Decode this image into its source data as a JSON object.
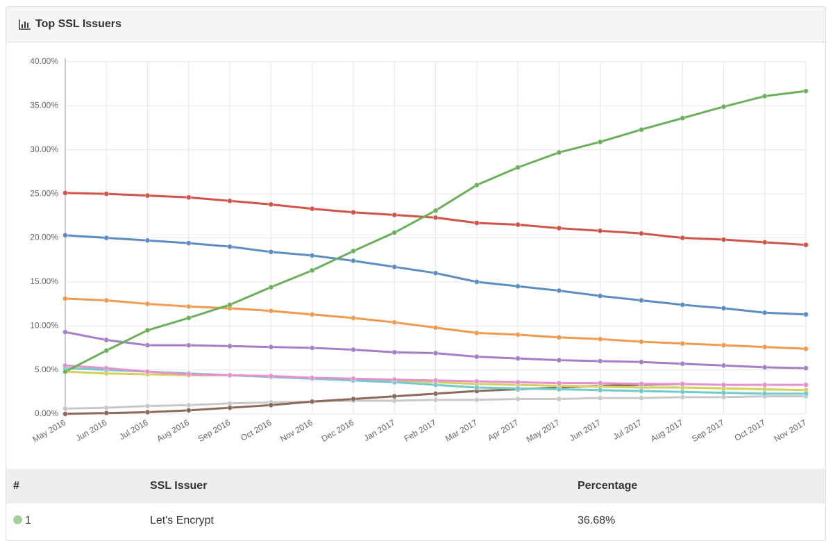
{
  "panel": {
    "title": "Top SSL Issuers"
  },
  "chart_data": {
    "type": "line",
    "categories": [
      "May 2016",
      "Jun 2016",
      "Jul 2016",
      "Aug 2016",
      "Sep 2016",
      "Oct 2016",
      "Nov 2016",
      "Dec 2016",
      "Jan 2017",
      "Feb 2017",
      "Mar 2017",
      "Apr 2017",
      "May 2017",
      "Jun 2017",
      "Jul 2017",
      "Aug 2017",
      "Sep 2017",
      "Oct 2017",
      "Nov 2017"
    ],
    "ylim": [
      0,
      40
    ],
    "yticks": [
      {
        "value": 0,
        "label": "0.00%"
      },
      {
        "value": 5,
        "label": "5.00%"
      },
      {
        "value": 10,
        "label": "10.00%"
      },
      {
        "value": 15,
        "label": "15.00%"
      },
      {
        "value": 20,
        "label": "20.00%"
      },
      {
        "value": 25,
        "label": "25.00%"
      },
      {
        "value": 30,
        "label": "30.00%"
      },
      {
        "value": 35,
        "label": "35.00%"
      },
      {
        "value": 40,
        "label": "40.00%"
      }
    ],
    "grid": true,
    "series": [
      {
        "color": "#c8c8c8",
        "values": [
          0.6,
          0.7,
          0.9,
          1.0,
          1.2,
          1.3,
          1.4,
          1.5,
          1.5,
          1.6,
          1.6,
          1.7,
          1.7,
          1.8,
          1.8,
          1.9,
          1.9,
          2.0,
          2.0
        ]
      },
      {
        "color": "#8c6a5a",
        "values": [
          0.0,
          0.1,
          0.2,
          0.4,
          0.7,
          1.0,
          1.4,
          1.7,
          2.0,
          2.3,
          2.6,
          2.8,
          3.0,
          3.2,
          3.3,
          3.4,
          null,
          null,
          null
        ]
      },
      {
        "color": "#d3d05a",
        "values": [
          4.8,
          4.6,
          4.5,
          4.4,
          4.4,
          4.2,
          4.0,
          3.9,
          3.8,
          3.6,
          3.4,
          3.3,
          3.2,
          3.1,
          3.0,
          3.0,
          2.9,
          2.8,
          2.7
        ]
      },
      {
        "color": "#6fcbcb",
        "values": [
          5.2,
          5.0,
          4.8,
          4.6,
          4.4,
          4.2,
          4.0,
          3.8,
          3.6,
          3.3,
          3.0,
          2.9,
          2.8,
          2.7,
          2.6,
          2.5,
          2.4,
          2.3,
          2.3
        ]
      },
      {
        "color": "#e58fcf",
        "values": [
          5.5,
          5.2,
          4.8,
          4.5,
          4.4,
          4.3,
          4.1,
          4.0,
          3.9,
          3.8,
          3.7,
          3.6,
          3.5,
          3.5,
          3.4,
          3.4,
          3.3,
          3.3,
          3.3
        ]
      },
      {
        "color": "#a47ec6",
        "values": [
          9.3,
          8.4,
          7.8,
          7.8,
          7.7,
          7.6,
          7.5,
          7.3,
          7.0,
          6.9,
          6.5,
          6.3,
          6.1,
          6.0,
          5.9,
          5.7,
          5.5,
          5.3,
          5.2
        ]
      },
      {
        "color": "#f0994f",
        "values": [
          13.1,
          12.9,
          12.5,
          12.2,
          12.0,
          11.7,
          11.3,
          10.9,
          10.4,
          9.8,
          9.2,
          9.0,
          8.7,
          8.5,
          8.2,
          8.0,
          7.8,
          7.6,
          7.4
        ]
      },
      {
        "color": "#5b8dc0",
        "values": [
          20.3,
          20.0,
          19.7,
          19.4,
          19.0,
          18.4,
          18.0,
          17.4,
          16.7,
          16.0,
          15.0,
          14.5,
          14.0,
          13.4,
          12.9,
          12.4,
          12.0,
          11.5,
          11.3
        ]
      },
      {
        "color": "#d0534a",
        "values": [
          25.1,
          25.0,
          24.8,
          24.6,
          24.2,
          23.8,
          23.3,
          22.9,
          22.6,
          22.3,
          21.7,
          21.5,
          21.1,
          20.8,
          20.5,
          20.0,
          19.8,
          19.5,
          19.2
        ]
      },
      {
        "color": "#6aaf5a",
        "values": [
          4.8,
          7.2,
          9.5,
          10.9,
          12.4,
          14.4,
          16.3,
          18.5,
          20.6,
          23.1,
          26.0,
          28.0,
          29.7,
          30.9,
          32.3,
          33.6,
          34.9,
          36.1,
          36.68
        ]
      }
    ]
  },
  "table": {
    "columns": [
      "#",
      "SSL Issuer",
      "Percentage"
    ],
    "rows": [
      [
        "1",
        "Let's Encrypt",
        "36.68%"
      ]
    ]
  }
}
